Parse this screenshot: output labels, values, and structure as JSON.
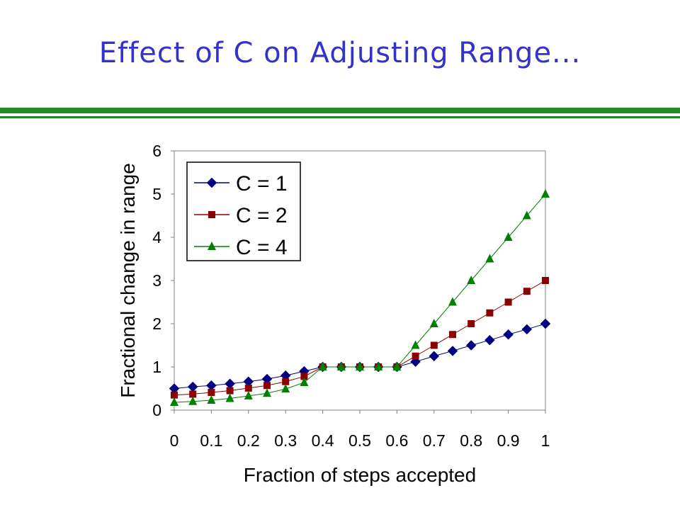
{
  "slide": {
    "title": "Effect of C on Adjusting Range...",
    "title_color": "#3333cc",
    "rule_color": "#228b22"
  },
  "chart_data": {
    "type": "line",
    "xlabel": "Fraction of steps accepted",
    "ylabel": "Fractional change in range",
    "xlim": [
      0,
      1
    ],
    "ylim": [
      0,
      6
    ],
    "x_ticks": [
      "0",
      "0.1",
      "0.2",
      "0.3",
      "0.4",
      "0.5",
      "0.6",
      "0.7",
      "0.8",
      "0.9",
      "1"
    ],
    "y_ticks": [
      "0",
      "1",
      "2",
      "3",
      "4",
      "5",
      "6"
    ],
    "grid": false,
    "legend_position": "top-left",
    "x": [
      0,
      0.05,
      0.1,
      0.15,
      0.2,
      0.25,
      0.3,
      0.35,
      0.4,
      0.45,
      0.5,
      0.55,
      0.6,
      0.65,
      0.7,
      0.75,
      0.8,
      0.85,
      0.9,
      0.95,
      1
    ],
    "series": [
      {
        "name": "C = 1",
        "marker": "diamond",
        "color": "#000080",
        "values": [
          0.5,
          0.54,
          0.57,
          0.61,
          0.66,
          0.72,
          0.8,
          0.9,
          1.0,
          1.0,
          1.0,
          1.0,
          1.0,
          1.12,
          1.25,
          1.37,
          1.5,
          1.62,
          1.75,
          1.87,
          2.0
        ]
      },
      {
        "name": "C = 2",
        "marker": "square",
        "color": "#8b0000",
        "values": [
          0.35,
          0.37,
          0.41,
          0.45,
          0.51,
          0.57,
          0.66,
          0.78,
          1.0,
          1.0,
          1.0,
          1.0,
          1.0,
          1.25,
          1.5,
          1.75,
          2.0,
          2.25,
          2.5,
          2.75,
          3.0
        ]
      },
      {
        "name": "C = 4",
        "marker": "triangle",
        "color": "#008000",
        "values": [
          0.18,
          0.2,
          0.23,
          0.27,
          0.33,
          0.39,
          0.49,
          0.64,
          1.0,
          1.0,
          1.0,
          1.0,
          1.0,
          1.5,
          2.0,
          2.5,
          3.0,
          3.5,
          4.0,
          4.5,
          5.0
        ]
      }
    ]
  }
}
